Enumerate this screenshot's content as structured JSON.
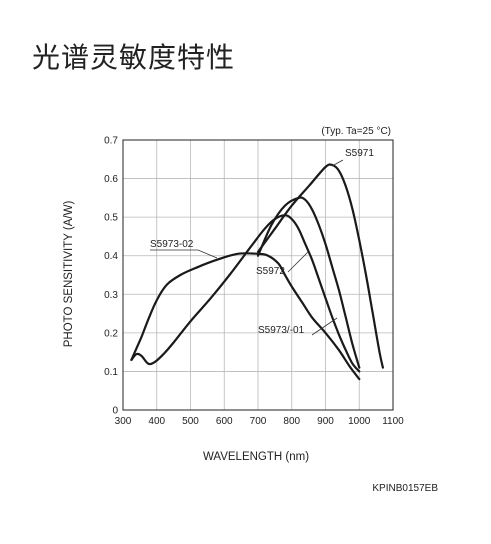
{
  "heading": "光谱灵敏度特性",
  "chart_data": {
    "type": "line",
    "title": "",
    "conditions": "(Typ. Ta=25 °C)",
    "xlabel": "WAVELENGTH (nm)",
    "ylabel": "PHOTO SENSITIVITY (A/W)",
    "xlim": [
      300,
      1100
    ],
    "ylim": [
      0,
      0.7
    ],
    "xticks": [
      300,
      400,
      500,
      600,
      700,
      800,
      900,
      1000,
      1100
    ],
    "yticks": [
      0,
      0.1,
      0.2,
      0.3,
      0.4,
      0.5,
      0.6,
      0.7
    ],
    "grid": true,
    "series": [
      {
        "name": "S5971",
        "x": [
          700,
          750,
          800,
          850,
          900,
          920,
          940,
          960,
          980,
          1000,
          1020,
          1040,
          1060,
          1070
        ],
        "y": [
          0.41,
          0.47,
          0.53,
          0.58,
          0.63,
          0.635,
          0.62,
          0.58,
          0.52,
          0.44,
          0.35,
          0.25,
          0.15,
          0.11
        ]
      },
      {
        "name": "S5972",
        "x": [
          700,
          740,
          780,
          820,
          840,
          860,
          880,
          900,
          920,
          940,
          960,
          980,
          1000
        ],
        "y": [
          0.4,
          0.48,
          0.53,
          0.55,
          0.545,
          0.52,
          0.48,
          0.43,
          0.37,
          0.31,
          0.24,
          0.17,
          0.11
        ]
      },
      {
        "name": "S5973-02",
        "x": [
          325,
          340,
          355,
          375,
          400,
          430,
          470,
          520,
          580,
          640,
          700,
          730,
          760,
          780,
          800,
          830,
          860,
          900,
          940,
          970,
          1000
        ],
        "y": [
          0.13,
          0.16,
          0.19,
          0.235,
          0.285,
          0.325,
          0.35,
          0.37,
          0.39,
          0.405,
          0.405,
          0.4,
          0.38,
          0.35,
          0.32,
          0.28,
          0.24,
          0.2,
          0.155,
          0.115,
          0.08
        ]
      },
      {
        "name": "S5973/-01",
        "x": [
          325,
          340,
          355,
          375,
          395,
          420,
          450,
          500,
          560,
          620,
          680,
          720,
          750,
          780,
          800,
          820,
          840,
          860,
          880,
          900,
          920,
          940,
          960,
          980,
          1000
        ],
        "y": [
          0.13,
          0.145,
          0.14,
          0.12,
          0.125,
          0.145,
          0.175,
          0.23,
          0.29,
          0.355,
          0.425,
          0.47,
          0.495,
          0.505,
          0.495,
          0.47,
          0.43,
          0.39,
          0.34,
          0.29,
          0.24,
          0.195,
          0.155,
          0.12,
          0.1
        ]
      }
    ],
    "annotations": [
      "S5971",
      "S5972",
      "S5973-02",
      "S5973/-01"
    ],
    "figure_code": "KPINB0157EB"
  }
}
